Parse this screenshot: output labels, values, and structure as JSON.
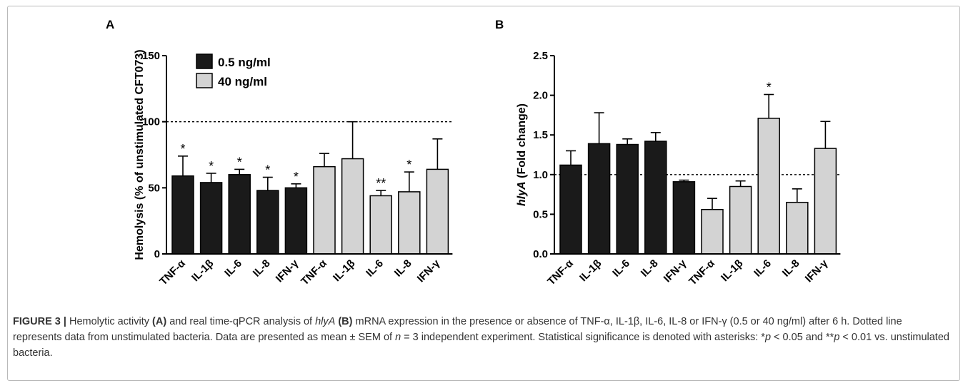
{
  "chart_data": [
    {
      "type": "bar",
      "panel_label": "A",
      "categories": [
        "TNF-α",
        "IL-1β",
        "IL-6",
        "IL-8",
        "IFN-γ",
        "TNF-α",
        "IL-1β",
        "IL-6",
        "IL-8",
        "IFN-γ"
      ],
      "values": [
        59,
        54,
        60,
        48,
        50,
        66,
        72,
        44,
        47,
        64
      ],
      "errors": [
        15,
        7,
        4,
        10,
        3,
        10,
        28,
        4,
        15,
        23
      ],
      "groups": [
        "0.5 ng/ml",
        "0.5 ng/ml",
        "0.5 ng/ml",
        "0.5 ng/ml",
        "0.5 ng/ml",
        "40 ng/ml",
        "40 ng/ml",
        "40 ng/ml",
        "40 ng/ml",
        "40 ng/ml"
      ],
      "significance": [
        "*",
        "*",
        "*",
        "*",
        "*",
        "",
        "",
        "**",
        "*",
        ""
      ],
      "legend": [
        {
          "name": "0.5 ng/ml",
          "color": "#1a1a1a"
        },
        {
          "name": "40 ng/ml",
          "color": "#d3d3d3"
        }
      ],
      "legend_position": "top-left",
      "ylabel": "Hemolysis (% of unstimulated CFT073)",
      "xlabel": "",
      "ylim": [
        0,
        150
      ],
      "yticks": [
        "0",
        "50",
        "100",
        "150"
      ],
      "reference_line": 100,
      "grid": false
    },
    {
      "type": "bar",
      "panel_label": "B",
      "categories": [
        "TNF-α",
        "IL-1β",
        "IL-6",
        "IL-8",
        "IFN-γ",
        "TNF-α",
        "IL-1β",
        "IL-6",
        "IL-8",
        "IFN-γ"
      ],
      "values": [
        1.12,
        1.39,
        1.38,
        1.42,
        0.91,
        0.56,
        0.85,
        1.71,
        0.65,
        1.33
      ],
      "errors": [
        0.18,
        0.39,
        0.07,
        0.11,
        0.02,
        0.14,
        0.07,
        0.3,
        0.17,
        0.34
      ],
      "groups": [
        "0.5 ng/ml",
        "0.5 ng/ml",
        "0.5 ng/ml",
        "0.5 ng/ml",
        "0.5 ng/ml",
        "40 ng/ml",
        "40 ng/ml",
        "40 ng/ml",
        "40 ng/ml",
        "40 ng/ml"
      ],
      "significance": [
        "",
        "",
        "",
        "",
        "",
        "",
        "",
        "*",
        "",
        ""
      ],
      "ylabel_italic": "hlyA",
      "ylabel_rest": " (Fold change)",
      "xlabel": "",
      "ylim": [
        0,
        2.5
      ],
      "yticks": [
        "0.0",
        "0.5",
        "1.0",
        "1.5",
        "2.0",
        "2.5"
      ],
      "reference_line": 1.0,
      "grid": false
    }
  ],
  "colors": {
    "dark_bar": "#1a1a1a",
    "light_bar": "#d3d3d3",
    "axis": "#000000"
  },
  "caption": {
    "figure_label": "FIGURE 3 |",
    "t1": " Hemolytic activity ",
    "a": "(A)",
    "t2": " and real time-qPCR analysis of ",
    "gene": "hlyA",
    "b": " (B)",
    "t3": " mRNA expression in the presence or absence of TNF-α, IL-1β, IL-6, IL-8 or IFN-γ (0.5 or 40 ng/ml) after 6 h. Dotted line represents data from unstimulated bacteria. Data are presented as mean ± SEM of ",
    "n": "n",
    "t4": " = 3 independent experiment. Statistical significance is denoted with asterisks: *",
    "p1": "p",
    "t5": " < 0.05 and **",
    "p2": "p",
    "t6": " < 0.01 vs. unstimulated bacteria."
  }
}
